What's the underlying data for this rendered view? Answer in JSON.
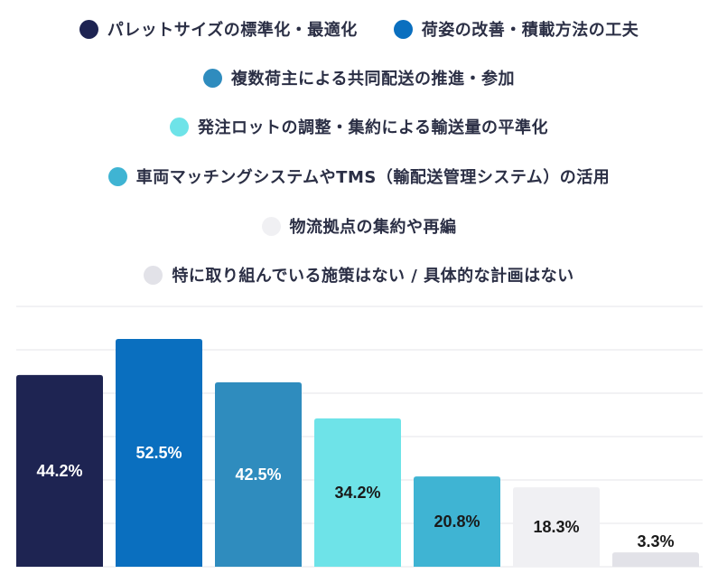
{
  "chart_data": {
    "type": "bar",
    "categories": [
      "パレットサイズの標準化・最適化",
      "荷姿の改善・積載方法の工夫",
      "複数荷主による共同配送の推進・参加",
      "発注ロットの調整・集約による輸送量の平準化",
      "車両マッチングシステムやTMS（輸配送管理システム）の活用",
      "物流拠点の集約や再編",
      "特に取り組んでいる施策はない / 具体的な計画はない"
    ],
    "values": [
      44.2,
      52.5,
      42.5,
      34.2,
      20.8,
      18.3,
      3.3
    ],
    "value_labels": [
      "44.2%",
      "52.5%",
      "42.5%",
      "34.2%",
      "20.8%",
      "18.3%",
      "3.3%"
    ],
    "colors": [
      "#1e2452",
      "#0a6fbf",
      "#2f8cbe",
      "#6ee3e8",
      "#3fb4d3",
      "#f0f0f3",
      "#e2e2e8"
    ],
    "label_colors": [
      "#ffffff",
      "#ffffff",
      "#ffffff",
      "#1a1a1a",
      "#1a1a1a",
      "#1a1a1a",
      "#1a1a1a"
    ],
    "label_position": [
      "inside",
      "inside",
      "inside",
      "inside",
      "inside",
      "inside",
      "above"
    ],
    "ylim": [
      0,
      60
    ],
    "grid": true,
    "legend_position": "top"
  }
}
